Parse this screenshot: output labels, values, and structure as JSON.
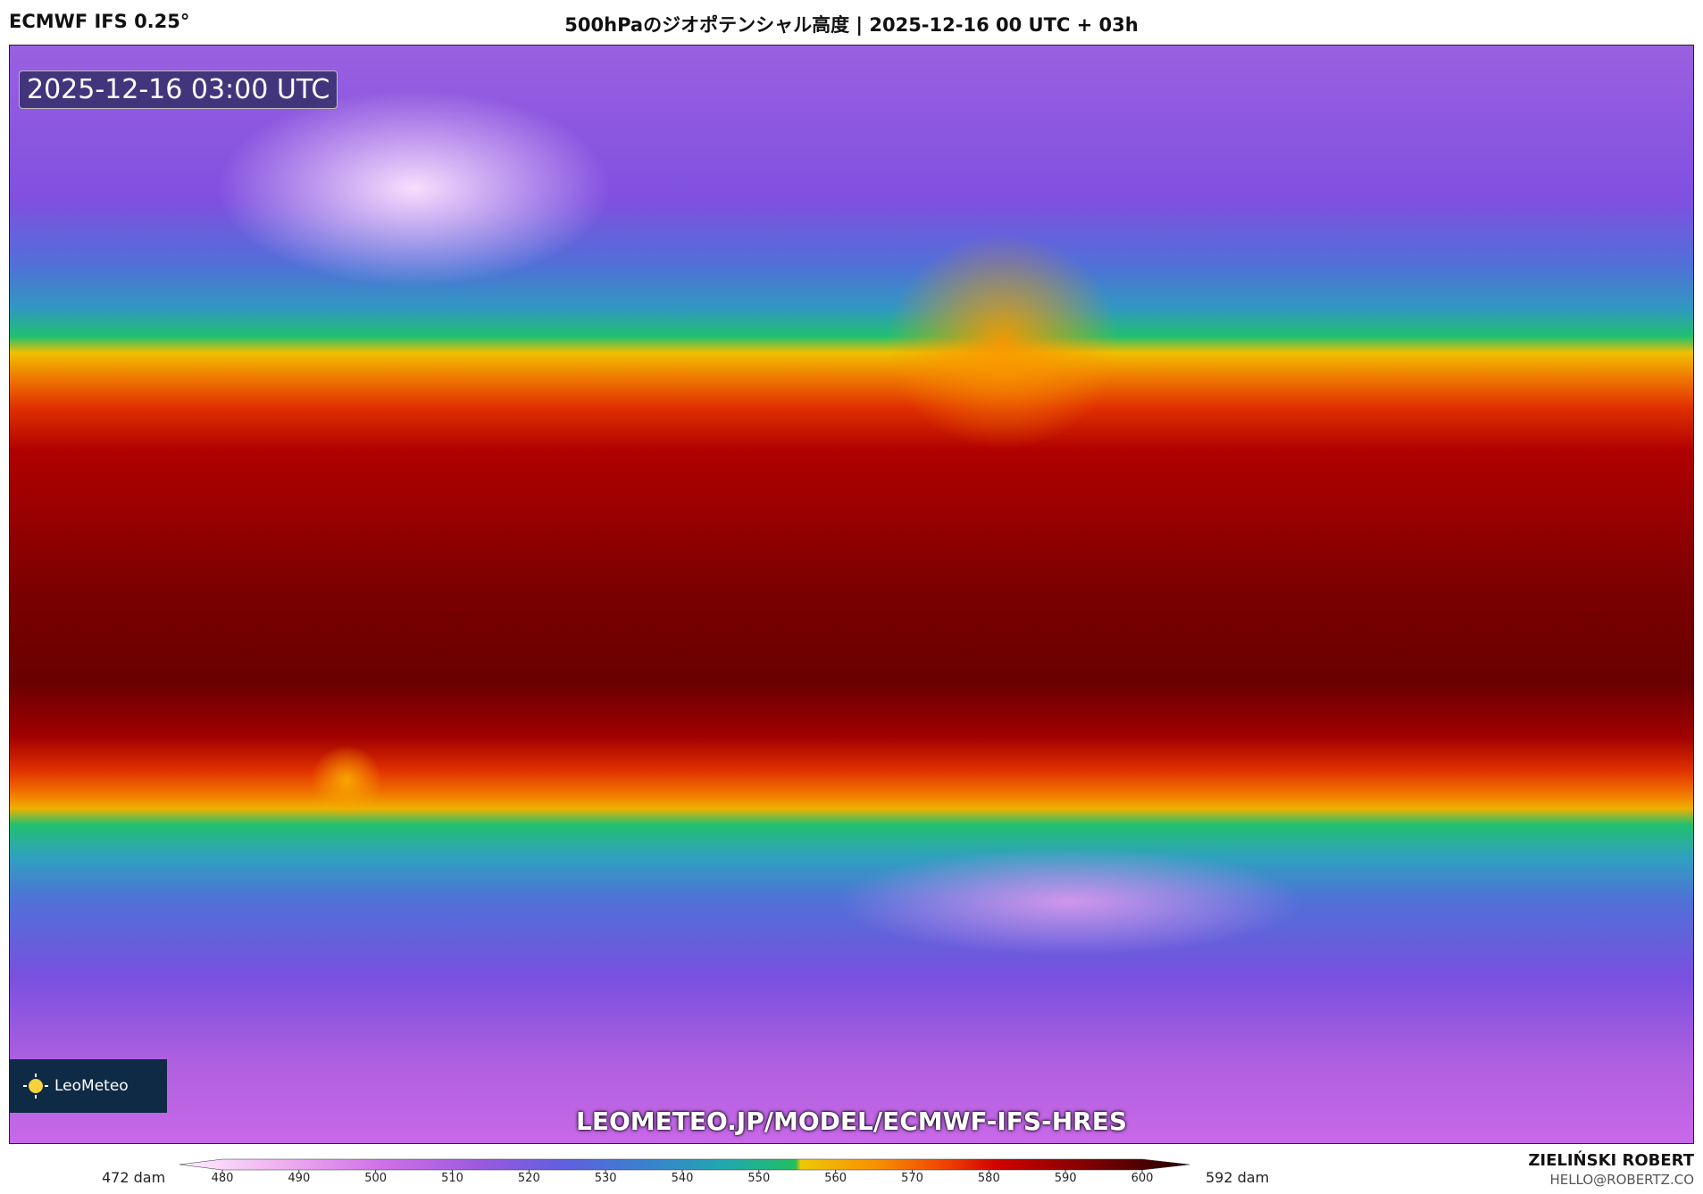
{
  "header": {
    "model": "ECMWF IFS 0.25°",
    "title": "500hPaのジオポテンシャル高度 | 2025-12-16 00 UTC + 03h"
  },
  "map": {
    "timestamp": "2025-12-16 03:00 UTC",
    "logo": "LeoMeteo",
    "url": "LEOMETEO.JP/MODEL/ECMWF-IFS-HRES"
  },
  "colorbar": {
    "min_label": "472 dam",
    "max_label": "592 dam",
    "ticks": [
      480,
      490,
      500,
      510,
      520,
      530,
      540,
      550,
      560,
      570,
      580,
      590,
      600
    ]
  },
  "footer": {
    "author": "ZIELIŃSKI ROBERT",
    "email": "HELLO@ROBERTZ.CO"
  }
}
